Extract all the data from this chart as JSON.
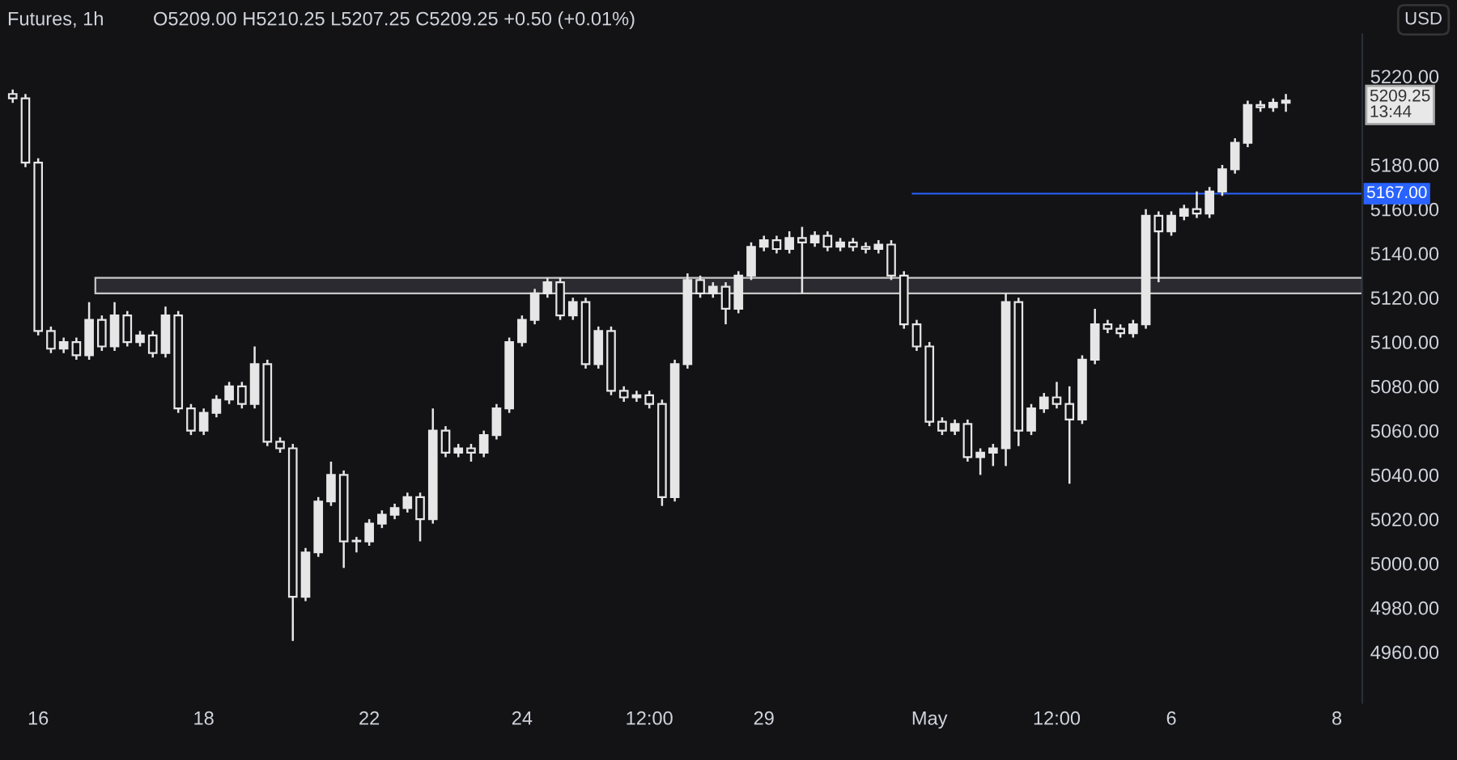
{
  "chart_data": {
    "type": "candlestick",
    "title": "Futures, 1h",
    "subtitle": "O5209.00 H5210.25 L5207.25 C5209.25 +0.50 (+0.01%)",
    "annotations": [
      "USD",
      "5209.25\n13:44"
    ],
    "series": [
      {
        "color": "#e6e6e6",
        "ohlc": [
          [
            5212,
            5214,
            5208,
            5210
          ],
          [
            5210,
            5212,
            5179,
            5181
          ],
          [
            5181,
            5183,
            5103,
            5105
          ],
          [
            5105,
            5107,
            5095,
            5097
          ],
          [
            5097,
            5102,
            5095,
            5100
          ],
          [
            5100,
            5102,
            5092,
            5094
          ],
          [
            5094,
            5118,
            5092,
            5110
          ],
          [
            5110,
            5112,
            5096,
            5098
          ],
          [
            5098,
            5118,
            5096,
            5112
          ],
          [
            5112,
            5114,
            5098,
            5100
          ],
          [
            5100,
            5105,
            5098,
            5103
          ],
          [
            5103,
            5105,
            5093,
            5095
          ],
          [
            5095,
            5116,
            5093,
            5112
          ],
          [
            5112,
            5114,
            5068,
            5070
          ],
          [
            5070,
            5072,
            5058,
            5060
          ],
          [
            5060,
            5070,
            5058,
            5068
          ],
          [
            5068,
            5076,
            5066,
            5074
          ],
          [
            5074,
            5082,
            5072,
            5080
          ],
          [
            5080,
            5082,
            5070,
            5072
          ],
          [
            5072,
            5098,
            5070,
            5090
          ],
          [
            5090,
            5092,
            5053,
            5055
          ],
          [
            5055,
            5057,
            5050,
            5052
          ],
          [
            5052,
            5054,
            4965,
            4985
          ],
          [
            4985,
            5007,
            4983,
            5005
          ],
          [
            5005,
            5030,
            5003,
            5028
          ],
          [
            5028,
            5046,
            5026,
            5040
          ],
          [
            5040,
            5042,
            4998,
            5010
          ],
          [
            5010,
            5012,
            5005,
            5010
          ],
          [
            5010,
            5020,
            5008,
            5018
          ],
          [
            5018,
            5024,
            5016,
            5022
          ],
          [
            5022,
            5027,
            5020,
            5025
          ],
          [
            5025,
            5032,
            5023,
            5030
          ],
          [
            5030,
            5032,
            5010,
            5020
          ],
          [
            5020,
            5070,
            5018,
            5060
          ],
          [
            5060,
            5062,
            5048,
            5050
          ],
          [
            5050,
            5054,
            5048,
            5052
          ],
          [
            5052,
            5054,
            5046,
            5050
          ],
          [
            5050,
            5060,
            5048,
            5058
          ],
          [
            5058,
            5072,
            5056,
            5070
          ],
          [
            5070,
            5102,
            5068,
            5100
          ],
          [
            5100,
            5112,
            5098,
            5110
          ],
          [
            5110,
            5124,
            5108,
            5122
          ],
          [
            5122,
            5129,
            5120,
            5127
          ],
          [
            5127,
            5129,
            5110,
            5112
          ],
          [
            5112,
            5120,
            5110,
            5118
          ],
          [
            5118,
            5120,
            5088,
            5090
          ],
          [
            5090,
            5107,
            5088,
            5105
          ],
          [
            5105,
            5107,
            5076,
            5078
          ],
          [
            5078,
            5080,
            5073,
            5075
          ],
          [
            5075,
            5078,
            5073,
            5076
          ],
          [
            5076,
            5078,
            5070,
            5072
          ],
          [
            5072,
            5074,
            5026,
            5030
          ],
          [
            5030,
            5092,
            5028,
            5090
          ],
          [
            5090,
            5131,
            5088,
            5128
          ],
          [
            5128,
            5130,
            5120,
            5122
          ],
          [
            5122,
            5127,
            5120,
            5125
          ],
          [
            5125,
            5127,
            5108,
            5115
          ],
          [
            5115,
            5132,
            5113,
            5130
          ],
          [
            5130,
            5145,
            5128,
            5143
          ],
          [
            5143,
            5148,
            5141,
            5146
          ],
          [
            5146,
            5148,
            5140,
            5142
          ],
          [
            5142,
            5150,
            5140,
            5147
          ],
          [
            5147,
            5152,
            5122,
            5145
          ],
          [
            5145,
            5150,
            5143,
            5148
          ],
          [
            5148,
            5150,
            5141,
            5143
          ],
          [
            5143,
            5147,
            5141,
            5145
          ],
          [
            5145,
            5147,
            5141,
            5143
          ],
          [
            5143,
            5145,
            5140,
            5142
          ],
          [
            5142,
            5146,
            5140,
            5144
          ],
          [
            5144,
            5146,
            5128,
            5130
          ],
          [
            5130,
            5132,
            5106,
            5108
          ],
          [
            5108,
            5110,
            5096,
            5098
          ],
          [
            5098,
            5100,
            5062,
            5064
          ],
          [
            5064,
            5066,
            5058,
            5060
          ],
          [
            5060,
            5065,
            5058,
            5063
          ],
          [
            5063,
            5065,
            5046,
            5048
          ],
          [
            5048,
            5052,
            5040,
            5050
          ],
          [
            5050,
            5054,
            5044,
            5052
          ],
          [
            5052,
            5122,
            5044,
            5118
          ],
          [
            5118,
            5120,
            5053,
            5060
          ],
          [
            5060,
            5072,
            5058,
            5070
          ],
          [
            5070,
            5077,
            5068,
            5075
          ],
          [
            5075,
            5082,
            5070,
            5072
          ],
          [
            5072,
            5080,
            5036,
            5065
          ],
          [
            5065,
            5094,
            5063,
            5092
          ],
          [
            5092,
            5115,
            5090,
            5108
          ],
          [
            5108,
            5110,
            5104,
            5106
          ],
          [
            5106,
            5108,
            5102,
            5104
          ],
          [
            5104,
            5110,
            5102,
            5108
          ],
          [
            5108,
            5160,
            5106,
            5157
          ],
          [
            5157,
            5159,
            5127,
            5150
          ],
          [
            5150,
            5159,
            5148,
            5157
          ],
          [
            5157,
            5162,
            5155,
            5160
          ],
          [
            5160,
            5168,
            5156,
            5158
          ],
          [
            5158,
            5170,
            5156,
            5168
          ],
          [
            5168,
            5180,
            5166,
            5178
          ],
          [
            5178,
            5192,
            5176,
            5190
          ],
          [
            5190,
            5209,
            5188,
            5207
          ],
          [
            5207,
            5209,
            5204,
            5206
          ],
          [
            5206,
            5210,
            5204,
            5208
          ],
          [
            5208,
            5212,
            5204,
            5209
          ],
          null,
          null,
          null,
          null,
          null
        ]
      }
    ],
    "categories": [
      null,
      null,
      "16",
      null,
      null,
      null,
      null,
      null,
      null,
      null,
      null,
      null,
      null,
      null,
      null,
      "18",
      null,
      null,
      null,
      null,
      null,
      null,
      null,
      null,
      null,
      null,
      null,
      null,
      "22",
      null,
      null,
      null,
      null,
      null,
      null,
      null,
      null,
      null,
      null,
      null,
      "24",
      null,
      null,
      null,
      null,
      null,
      null,
      null,
      null,
      null,
      "12:00",
      null,
      null,
      null,
      null,
      null,
      null,
      null,
      null,
      "29",
      null,
      null,
      null,
      null,
      null,
      null,
      null,
      null,
      null,
      null,
      null,
      null,
      "May",
      null,
      null,
      null,
      null,
      null,
      null,
      null,
      null,
      null,
      "12:00",
      null,
      null,
      null,
      null,
      null,
      null,
      null,
      null,
      "6",
      null,
      null,
      null,
      null,
      null,
      null,
      null,
      null,
      null,
      null,
      null,
      null,
      "8",
      null
    ],
    "ylim": [
      4937,
      5239
    ],
    "yticks": [
      {
        "value": 4960,
        "label": "4960.00"
      },
      {
        "value": 4980,
        "label": "4980.00"
      },
      {
        "value": 5000,
        "label": "5000.00"
      },
      {
        "value": 5020,
        "label": "5020.00"
      },
      {
        "value": 5040,
        "label": "5040.00"
      },
      {
        "value": 5060,
        "label": "5060.00"
      },
      {
        "value": 5080,
        "label": "5080.00"
      },
      {
        "value": 5100,
        "label": "5100.00"
      },
      {
        "value": 5120,
        "label": "5120.00"
      },
      {
        "value": 5140,
        "label": "5140.00"
      },
      {
        "value": 5160,
        "label": "5160.00"
      },
      {
        "value": 5180,
        "label": "5180.00"
      },
      {
        "value": 5220,
        "label": "5220.00"
      }
    ],
    "ref_lines": [
      {
        "axis": "y",
        "value": 5167,
        "label": "5167.00",
        "color": "#2962ff"
      }
    ],
    "bands": [
      {
        "axis": "y",
        "from": 5122,
        "to": 5129,
        "color": "#2a2a30"
      }
    ],
    "grid": false
  }
}
